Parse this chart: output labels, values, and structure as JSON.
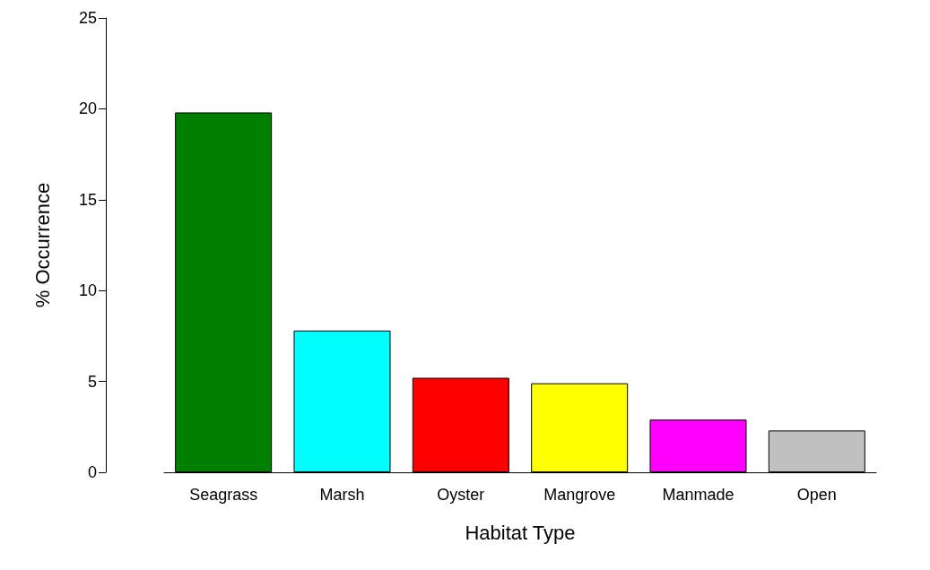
{
  "chart_data": {
    "type": "bar",
    "xlabel": "Habitat Type",
    "ylabel": "% Occurrence",
    "categories": [
      "Seagrass",
      "Marsh",
      "Oyster",
      "Mangrove",
      "Manmade",
      "Open"
    ],
    "values": [
      19.8,
      7.8,
      5.2,
      4.9,
      2.9,
      2.3
    ],
    "colors": [
      "#007f00",
      "#00ffff",
      "#ff0000",
      "#ffff00",
      "#ff00ff",
      "#c0c0c0"
    ],
    "ylim": [
      0,
      25
    ],
    "yticks": [
      0,
      5,
      10,
      15,
      20,
      25
    ]
  }
}
